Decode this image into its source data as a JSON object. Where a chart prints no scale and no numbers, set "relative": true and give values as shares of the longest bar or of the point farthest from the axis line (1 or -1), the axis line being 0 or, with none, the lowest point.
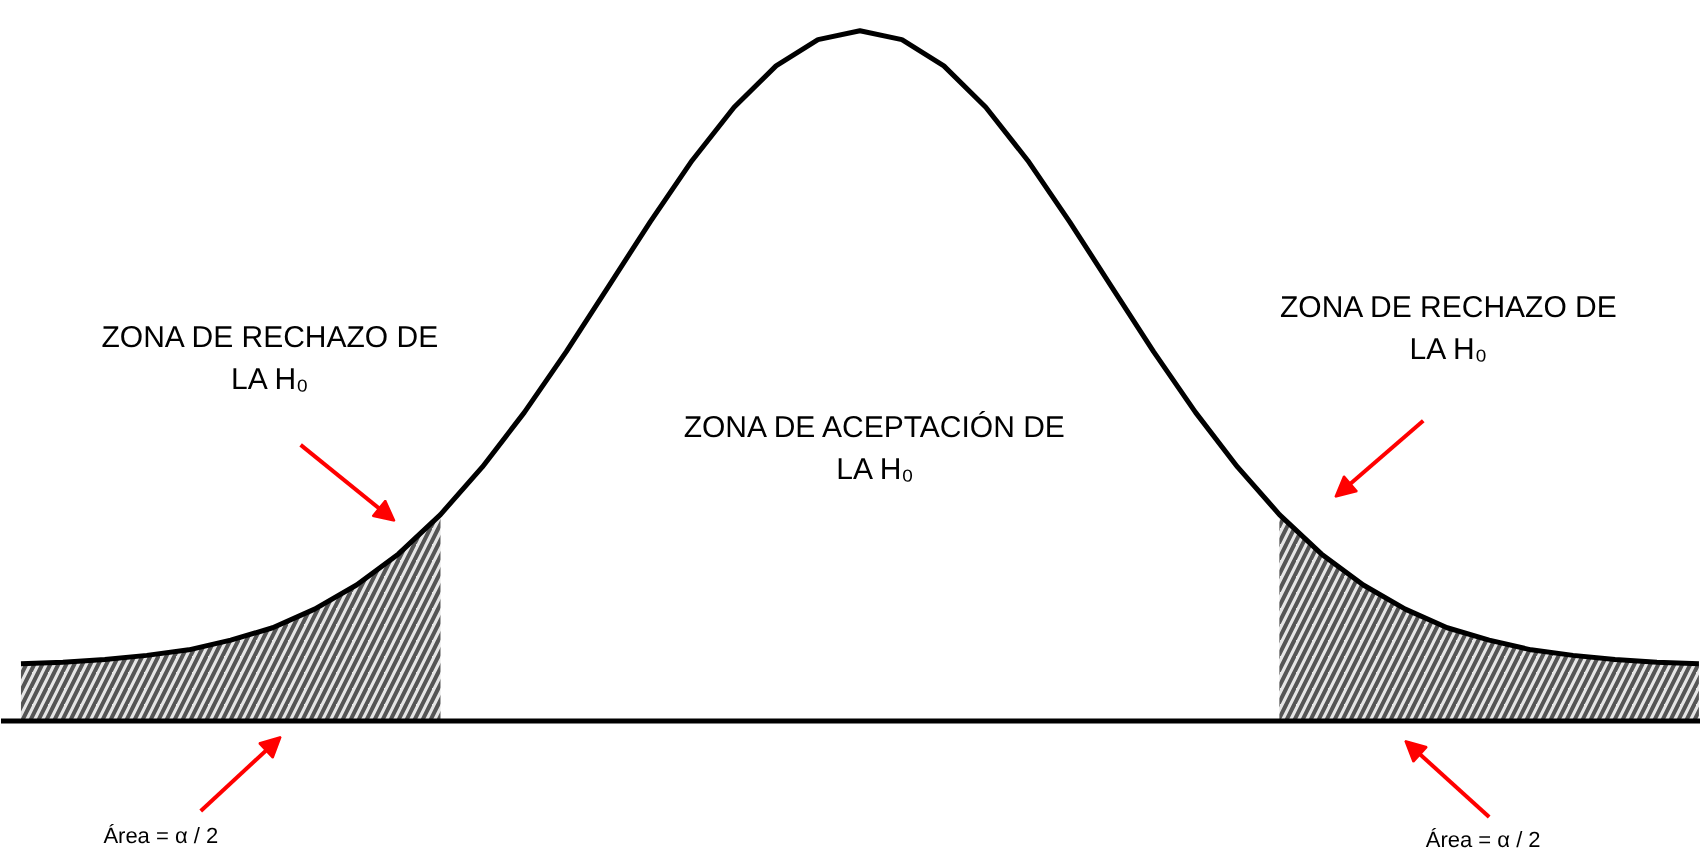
{
  "chart_data": {
    "type": "line",
    "relative": true,
    "categories": [
      null,
      null,
      null,
      null,
      null,
      null,
      null,
      null,
      null,
      null,
      null,
      null,
      null,
      null,
      null,
      null,
      null,
      null,
      null,
      null,
      null,
      null,
      null,
      null,
      null,
      null,
      null,
      null,
      null,
      null,
      null,
      null,
      null,
      null,
      null,
      null,
      null,
      null,
      null,
      null,
      null
    ],
    "series": [
      {
        "color": "#000000",
        "values": [
          0.083,
          0.085,
          0.089,
          0.095,
          0.103,
          0.117,
          0.135,
          0.162,
          0.197,
          0.242,
          0.299,
          0.368,
          0.447,
          0.535,
          0.629,
          0.723,
          0.812,
          0.889,
          0.949,
          0.987,
          1.0,
          0.987,
          0.949,
          0.889,
          0.812,
          0.723,
          0.629,
          0.535,
          0.447,
          0.368,
          0.299,
          0.242,
          0.197,
          0.162,
          0.135,
          0.117,
          0.103,
          0.095,
          0.089,
          0.085,
          0.083
        ]
      },
      {
        "type": "area",
        "color": "#555555",
        "values": [
          0.083,
          0.085,
          0.089,
          0.095,
          0.103,
          0.117,
          0.135,
          0.162,
          0.197,
          0.242,
          0.299,
          null,
          null,
          null,
          null,
          null,
          null,
          null,
          null,
          null,
          null,
          null,
          null,
          null,
          null,
          null,
          null,
          null,
          null,
          null,
          0.299,
          0.242,
          0.197,
          0.162,
          0.135,
          0.117,
          0.103,
          0.095,
          0.089,
          0.085,
          0.083
        ]
      }
    ],
    "annotations": [
      "ZONA DE RECHAZO DE\nLA H₀",
      "ZONA DE ACEPTACIÓN DE\nLA H₀",
      "ZONA DE RECHAZO DE\nLA H₀",
      "Área = α / 2",
      "Área = α / 2"
    ]
  }
}
